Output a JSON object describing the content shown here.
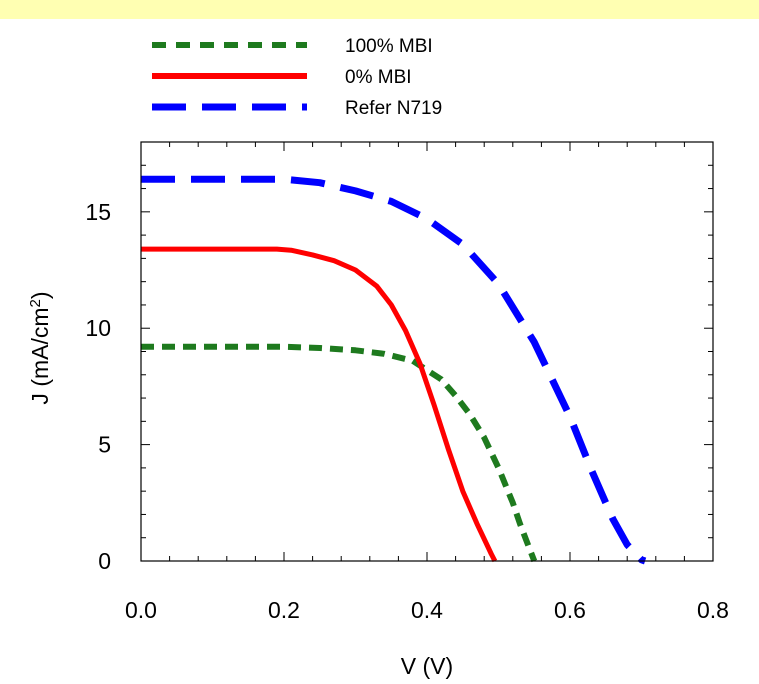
{
  "chart_data": {
    "type": "line",
    "xlabel": "V (V)",
    "ylabel": "J (mA/cm²)",
    "ylabel_parts": {
      "prefix": "J (mA/cm",
      "sup": "2",
      "suffix": ")"
    },
    "xlim": [
      0.0,
      0.8
    ],
    "ylim": [
      0,
      18
    ],
    "xticks": [
      0.0,
      0.2,
      0.4,
      0.6,
      0.8
    ],
    "xtick_labels": [
      "0.0",
      "0.2",
      "0.4",
      "0.6",
      "0.8"
    ],
    "yticks": [
      0,
      5,
      10,
      15
    ],
    "ytick_labels": [
      "0",
      "5",
      "10",
      "15"
    ],
    "grid": false,
    "legend_position": "top",
    "series": [
      {
        "name": "100% MBI",
        "color": "#1e7a1e",
        "style": "short-dash",
        "x": [
          0.0,
          0.1,
          0.2,
          0.25,
          0.3,
          0.34,
          0.38,
          0.4,
          0.42,
          0.44,
          0.46,
          0.48,
          0.5,
          0.52,
          0.53,
          0.54,
          0.55
        ],
        "y": [
          9.2,
          9.2,
          9.2,
          9.15,
          9.05,
          8.9,
          8.6,
          8.2,
          7.8,
          7.1,
          6.3,
          5.3,
          4.0,
          2.5,
          1.6,
          0.8,
          0.0
        ]
      },
      {
        "name": "0% MBI",
        "color": "#ff0000",
        "style": "solid",
        "x": [
          0.0,
          0.1,
          0.19,
          0.21,
          0.24,
          0.27,
          0.3,
          0.33,
          0.35,
          0.37,
          0.39,
          0.41,
          0.43,
          0.45,
          0.47,
          0.49,
          0.495
        ],
        "y": [
          13.4,
          13.4,
          13.4,
          13.35,
          13.15,
          12.9,
          12.5,
          11.8,
          11.0,
          9.9,
          8.5,
          6.7,
          4.8,
          3.0,
          1.6,
          0.3,
          0.0
        ]
      },
      {
        "name": "Refer N719",
        "color": "#0000ff",
        "style": "long-dash",
        "x": [
          0.0,
          0.1,
          0.2,
          0.25,
          0.3,
          0.35,
          0.4,
          0.45,
          0.5,
          0.55,
          0.6,
          0.63,
          0.66,
          0.68,
          0.7,
          0.705
        ],
        "y": [
          16.4,
          16.4,
          16.4,
          16.25,
          15.9,
          15.45,
          14.7,
          13.6,
          11.9,
          9.4,
          6.2,
          3.9,
          1.8,
          0.7,
          0.05,
          0.0
        ]
      }
    ]
  }
}
